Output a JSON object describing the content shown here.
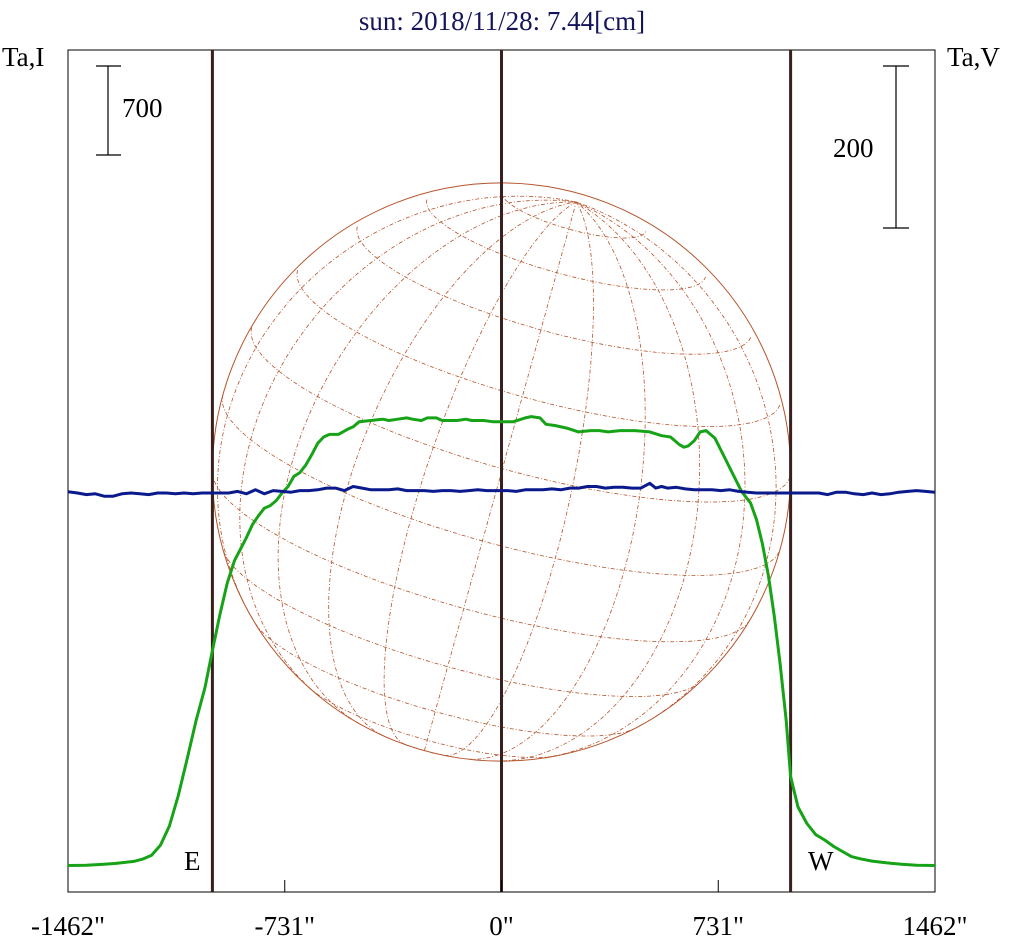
{
  "chart_data": {
    "type": "line",
    "title": "sun: 2018/11/28: 7.44[cm]",
    "left_axis_label": "Ta,I",
    "right_axis_label": "Ta,V",
    "x_ticks": [
      "-1462\"",
      "-731\"",
      "0\"",
      "731\"",
      "1462\""
    ],
    "x_tick_values": [
      -1462,
      -731,
      0,
      731,
      1462
    ],
    "xlim": [
      -1462,
      1462
    ],
    "left_scale_bar": "700",
    "right_scale_bar": "200",
    "limb_labels": {
      "east": "E",
      "west": "W"
    },
    "limb_positions": [
      -975,
      975
    ],
    "disk": {
      "radius_arcsec": 975
    },
    "colors": {
      "intensity": "#17a317",
      "polarization": "#0a1a8c",
      "disk": "#b5532a",
      "limb_lines": "#3a1f1f",
      "title": "#14145a"
    },
    "series": [
      {
        "name": "Ta,I",
        "color": "#17a317",
        "x": [
          -1462,
          -1400,
          -1340,
          -1300,
          -1270,
          -1240,
          -1210,
          -1180,
          -1150,
          -1120,
          -1090,
          -1060,
          -1030,
          -1000,
          -975,
          -950,
          -925,
          -900,
          -880,
          -860,
          -840,
          -820,
          -800,
          -780,
          -760,
          -740,
          -720,
          -700,
          -680,
          -660,
          -640,
          -620,
          -600,
          -580,
          -550,
          -520,
          -500,
          -480,
          -440,
          -400,
          -380,
          -350,
          -320,
          -300,
          -270,
          -250,
          -220,
          -200,
          -170,
          -150,
          -120,
          -100,
          -60,
          -30,
          0,
          40,
          80,
          100,
          130,
          150,
          180,
          220,
          260,
          300,
          330,
          360,
          400,
          450,
          500,
          540,
          570,
          600,
          615,
          630,
          650,
          670,
          690,
          720,
          750,
          780,
          810,
          840,
          860,
          880,
          900,
          920,
          940,
          960,
          975,
          1000,
          1030,
          1060,
          1090,
          1120,
          1150,
          1180,
          1210,
          1250,
          1300,
          1350,
          1400,
          1462
        ],
        "values": [
          20,
          21,
          30,
          36,
          44,
          52,
          70,
          101,
          180,
          330,
          570,
          860,
          1160,
          1420,
          1710,
          1990,
          2240,
          2420,
          2510,
          2600,
          2700,
          2770,
          2830,
          2850,
          2890,
          2950,
          3000,
          3080,
          3110,
          3170,
          3250,
          3340,
          3390,
          3410,
          3410,
          3450,
          3470,
          3510,
          3520,
          3530,
          3520,
          3530,
          3540,
          3530,
          3520,
          3540,
          3540,
          3520,
          3520,
          3520,
          3530,
          3520,
          3520,
          3510,
          3510,
          3510,
          3540,
          3550,
          3540,
          3490,
          3480,
          3460,
          3430,
          3440,
          3440,
          3430,
          3440,
          3440,
          3430,
          3400,
          3390,
          3330,
          3310,
          3320,
          3360,
          3430,
          3440,
          3380,
          3240,
          3100,
          2960,
          2870,
          2740,
          2550,
          2300,
          1980,
          1600,
          1160,
          720,
          480,
          350,
          262,
          220,
          170,
          130,
          90,
          72,
          54,
          40,
          30,
          21,
          20
        ]
      },
      {
        "name": "Ta,V",
        "color": "#0a1a8c",
        "x": [
          -1462,
          -1430,
          -1400,
          -1370,
          -1340,
          -1310,
          -1280,
          -1250,
          -1220,
          -1190,
          -1160,
          -1130,
          -1100,
          -1070,
          -1040,
          -1010,
          -980,
          -950,
          -920,
          -890,
          -860,
          -830,
          -800,
          -770,
          -740,
          -710,
          -680,
          -650,
          -620,
          -590,
          -560,
          -530,
          -500,
          -470,
          -440,
          -410,
          -380,
          -350,
          -320,
          -290,
          -260,
          -230,
          -200,
          -170,
          -140,
          -110,
          -80,
          -50,
          -20,
          0,
          20,
          50,
          80,
          110,
          140,
          170,
          200,
          230,
          260,
          290,
          320,
          350,
          380,
          410,
          440,
          470,
          500,
          520,
          540,
          560,
          590,
          620,
          650,
          680,
          710,
          740,
          770,
          800,
          830,
          860,
          890,
          920,
          950,
          980,
          1010,
          1040,
          1070,
          1100,
          1130,
          1160,
          1190,
          1220,
          1250,
          1280,
          1310,
          1340,
          1370,
          1400,
          1430,
          1462
        ],
        "values": [
          1.5,
          0,
          -2,
          -1,
          -4,
          -4,
          -1,
          0,
          -1,
          -2,
          0,
          0,
          -1,
          0,
          -1,
          0,
          0,
          0,
          0,
          2,
          -1,
          4,
          -1,
          3,
          2,
          1,
          3,
          3,
          4,
          6,
          6,
          3,
          8,
          6,
          4,
          4,
          4,
          5,
          3,
          3,
          3,
          2,
          3,
          3,
          2,
          3,
          4,
          3,
          3,
          3,
          3,
          2,
          4,
          4,
          4,
          5,
          4,
          6,
          6,
          8,
          8,
          6,
          7,
          7,
          6,
          6,
          12,
          6,
          8,
          6,
          7,
          5,
          4,
          4,
          4,
          3,
          4,
          2,
          1,
          0,
          0,
          0,
          0,
          0,
          0,
          0,
          0,
          -2,
          1,
          1,
          -1,
          -2,
          0,
          -2,
          -1,
          1,
          2,
          3,
          2,
          1
        ]
      }
    ]
  }
}
